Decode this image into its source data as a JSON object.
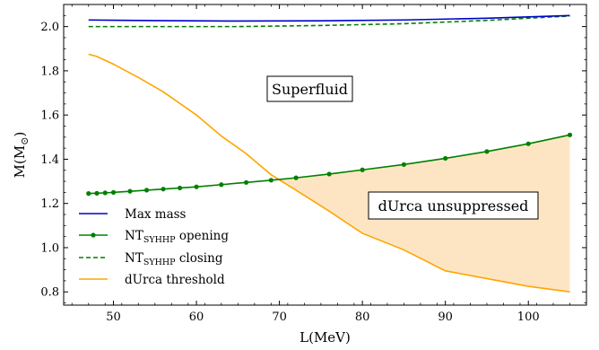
{
  "chart_data": {
    "type": "line",
    "xlabel": "L(MeV)",
    "ylabel": "M(M",
    "ylabel_sub": "⊙",
    "ylabel_close": ")",
    "xlim": [
      44,
      107
    ],
    "ylim": [
      0.74,
      2.1
    ],
    "xticks": [
      50,
      60,
      70,
      80,
      90,
      100
    ],
    "yticks": [
      0.8,
      1.0,
      1.2,
      1.4,
      1.6,
      1.8,
      2.0
    ],
    "xtick_labels": [
      "50",
      "60",
      "70",
      "80",
      "90",
      "100"
    ],
    "ytick_labels": [
      "0.8",
      "1.0",
      "1.2",
      "1.4",
      "1.6",
      "1.8",
      "2.0"
    ],
    "series": [
      {
        "name": "Max mass",
        "color": "#0000cc",
        "style": "solid",
        "x": [
          47,
          55,
          65,
          75,
          85,
          95,
          105
        ],
        "y": [
          2.03,
          2.027,
          2.025,
          2.026,
          2.03,
          2.038,
          2.05
        ]
      },
      {
        "name": "NT",
        "name_sub": "SYHHP",
        "name_suffix": " opening",
        "color": "#008000",
        "style": "solid-markers",
        "x": [
          47,
          48,
          49,
          50,
          52,
          54,
          56,
          58,
          60,
          63,
          66,
          69,
          72,
          76,
          80,
          85,
          90,
          95,
          100,
          105
        ],
        "y": [
          1.245,
          1.246,
          1.248,
          1.25,
          1.255,
          1.26,
          1.265,
          1.27,
          1.275,
          1.285,
          1.295,
          1.305,
          1.316,
          1.333,
          1.352,
          1.376,
          1.404,
          1.435,
          1.47,
          1.51
        ]
      },
      {
        "name": "NT",
        "name_sub": "SYHHP",
        "name_suffix": " closing",
        "color": "#008000",
        "style": "dashed",
        "x": [
          47,
          55,
          65,
          75,
          85,
          95,
          105
        ],
        "y": [
          2.0,
          2.0,
          2.0,
          2.005,
          2.013,
          2.028,
          2.048
        ]
      },
      {
        "name": "dUrca threshold",
        "color": "#ffa500",
        "style": "solid",
        "x": [
          47,
          48,
          50,
          53,
          56,
          60,
          63,
          66,
          69,
          72,
          76,
          80,
          85,
          90,
          95,
          100,
          105
        ],
        "y": [
          1.875,
          1.865,
          1.83,
          1.77,
          1.705,
          1.6,
          1.505,
          1.425,
          1.33,
          1.26,
          1.165,
          1.065,
          0.99,
          0.895,
          0.86,
          0.825,
          0.8
        ]
      }
    ],
    "shaded_region": {
      "label": "dUrca unsuppressed",
      "color": "#fde5c4",
      "between": "NT opening (upper) and dUrca threshold (lower) where dUrca < NT"
    },
    "annotations": [
      {
        "text": "Superfluid"
      },
      {
        "text": "dUrca unsuppressed"
      }
    ],
    "legend_placement": "lower-left",
    "grid": false
  }
}
